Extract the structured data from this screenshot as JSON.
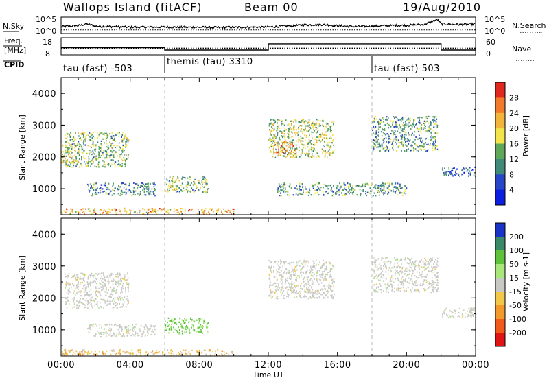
{
  "header": {
    "station": "Wallops Island (fitACF)",
    "beam": "Beam 00",
    "date": "19/Aug/2010"
  },
  "noise_panel": {
    "left_label": "N.Sky",
    "right_label": "N.Search",
    "left_ticks": [
      "10^5",
      "10^0"
    ],
    "right_ticks": [
      "10^5",
      "10^0"
    ]
  },
  "freq_panel": {
    "label_line1": "Freq.",
    "label_line2": "[MHz]",
    "left_ticks": [
      "18",
      "8"
    ],
    "right_label": "Nave",
    "right_ticks": [
      "60",
      "0"
    ]
  },
  "cpid": {
    "label": "CPID",
    "segments": [
      {
        "name": "tau (fast) -503",
        "start_hour": 0
      },
      {
        "name": "themis (tau) 3310",
        "start_hour": 6
      },
      {
        "name": "tau (fast) 503",
        "start_hour": 18
      }
    ]
  },
  "axes": {
    "ylabel": "Slant Range [km]",
    "xlabel": "Time UT",
    "yticks": [
      "1000",
      "2000",
      "3000",
      "4000"
    ],
    "xticks": [
      "00:00",
      "04:00",
      "08:00",
      "12:00",
      "16:00",
      "20:00",
      "00:00"
    ]
  },
  "chart_data": [
    {
      "type": "line",
      "title": "N.Sky",
      "x_hours": [
        0,
        1,
        1.5,
        2,
        3,
        4,
        5,
        6,
        7,
        8,
        9,
        10,
        11,
        12,
        13,
        14,
        15,
        16,
        17,
        18,
        19,
        20,
        21,
        21.8,
        22,
        23,
        24
      ],
      "log10_noise": [
        2.0,
        2.4,
        3.0,
        2.2,
        2.0,
        1.8,
        1.8,
        1.9,
        1.8,
        1.8,
        1.7,
        1.8,
        1.8,
        1.9,
        2.2,
        2.6,
        2.8,
        2.4,
        2.0,
        2.2,
        2.4,
        2.5,
        2.8,
        4.6,
        3.0,
        2.8,
        2.9
      ],
      "ylim": [
        0,
        5
      ]
    },
    {
      "type": "line",
      "title": "Freq.",
      "series": [
        {
          "name": "Freq.",
          "x_hours": [
            0,
            6,
            6,
            12,
            12,
            22,
            22,
            24
          ],
          "values_mhz": [
            12,
            12,
            10.4,
            10.4,
            14.7,
            14.7,
            10.4,
            10.4
          ]
        },
        {
          "name": "Nave",
          "x_hours": [
            0,
            24
          ],
          "values": [
            22,
            22
          ]
        }
      ],
      "ylim_freq": [
        8,
        18
      ],
      "ylim_nave": [
        0,
        60
      ]
    },
    {
      "type": "heatmap",
      "title": "Power",
      "colorbar_label": "Power [dB]",
      "colorbar_ticks": [
        "4",
        "8",
        "12",
        "16",
        "20",
        "24",
        "28"
      ],
      "colors": [
        "#0a1fe0",
        "#2a46c8",
        "#3f8a78",
        "#5fa85a",
        "#f2e44a",
        "#f2b43a",
        "#f27a2a",
        "#e0281e"
      ],
      "xlim_hours": [
        0,
        24
      ],
      "ylim_km": [
        180,
        4500
      ],
      "scatter_regions": [
        {
          "t0": 0.2,
          "t1": 3.9,
          "r0": 1700,
          "r1": 2800,
          "power_db": 14
        },
        {
          "t0": 0.0,
          "t1": 1.0,
          "r0": 1800,
          "r1": 2400,
          "power_db": 18
        },
        {
          "t0": 1.5,
          "t1": 5.5,
          "r0": 800,
          "r1": 1200,
          "power_db": 10
        },
        {
          "t0": 6.0,
          "t1": 8.5,
          "r0": 900,
          "r1": 1400,
          "power_db": 14
        },
        {
          "t0": 0.0,
          "t1": 10.0,
          "r0": 220,
          "r1": 400,
          "power_db": 22
        },
        {
          "t0": 12.0,
          "t1": 15.8,
          "r0": 2000,
          "r1": 3200,
          "power_db": 16
        },
        {
          "t0": 12.2,
          "t1": 13.5,
          "r0": 2100,
          "r1": 2500,
          "power_db": 24
        },
        {
          "t0": 18.0,
          "t1": 21.8,
          "r0": 2200,
          "r1": 3300,
          "power_db": 12
        },
        {
          "t0": 22.0,
          "t1": 24.0,
          "r0": 1400,
          "r1": 1700,
          "power_db": 8
        },
        {
          "t0": 12.5,
          "t1": 20.0,
          "r0": 800,
          "r1": 1200,
          "power_db": 12
        }
      ]
    },
    {
      "type": "heatmap",
      "title": "Velocity",
      "colorbar_label": "Velocity [m s-1]",
      "colorbar_ticks": [
        "200",
        "100",
        "50",
        "15",
        "-15",
        "-50",
        "-100",
        "-200"
      ],
      "colors": [
        "#1a34c8",
        "#3a8a6a",
        "#5ec23a",
        "#a8e87a",
        "#c8c8c4",
        "#f2c84a",
        "#f29a2a",
        "#f25a1a",
        "#e01414"
      ],
      "xlim_hours": [
        0,
        24
      ],
      "ylim_km": [
        180,
        4500
      ],
      "scatter_regions": [
        {
          "t0": 0.2,
          "t1": 3.9,
          "r0": 1700,
          "r1": 2800,
          "velocity": 0
        },
        {
          "t0": 1.5,
          "t1": 5.5,
          "r0": 800,
          "r1": 1200,
          "velocity": 0
        },
        {
          "t0": 6.0,
          "t1": 8.5,
          "r0": 900,
          "r1": 1400,
          "velocity": 20
        },
        {
          "t0": 12.0,
          "t1": 15.8,
          "r0": 2000,
          "r1": 3200,
          "velocity": 0
        },
        {
          "t0": 18.0,
          "t1": 21.8,
          "r0": 2200,
          "r1": 3300,
          "velocity": 0
        },
        {
          "t0": 0.0,
          "t1": 10.0,
          "r0": 220,
          "r1": 400,
          "velocity": -40
        },
        {
          "t0": 22.0,
          "t1": 24.0,
          "r0": 1400,
          "r1": 1700,
          "velocity": 0
        }
      ]
    }
  ]
}
